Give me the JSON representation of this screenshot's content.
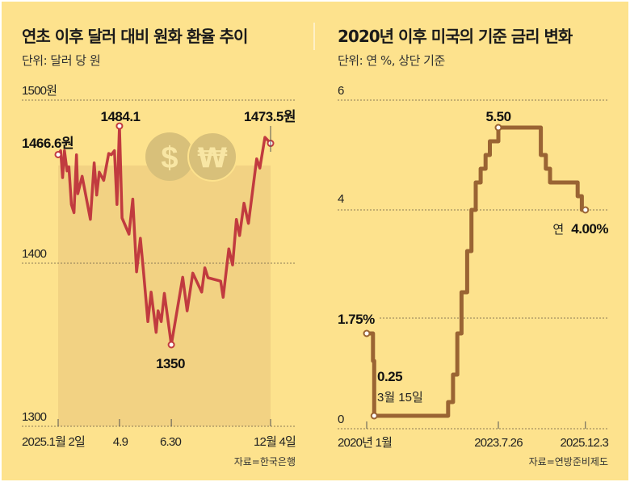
{
  "colors": {
    "background": "#fde28d",
    "shade": "#f2d283",
    "krw_line": "#c13b3f",
    "fed_line": "#9a6433",
    "coin": "#d8c07a",
    "coin_glyph": "#f8e6a4"
  },
  "chart_data": [
    {
      "type": "line",
      "title": "연초 이후 달러 대비 원화 환율 추이",
      "subtitle": "단위: 달러 당 원",
      "ylim": [
        1300,
        1500
      ],
      "y_ticks": [
        "1500원",
        "1400",
        "1300"
      ],
      "x_ticks": [
        "2025.1월 2일",
        "4.9",
        "6.30",
        "12월 4일"
      ],
      "x_tick_dates": [
        "2025-01-02",
        "2025-04-09",
        "2025-06-30",
        "2025-12-04"
      ],
      "grid": "horizontal dashed",
      "source": "자료=한국은행",
      "icons": [
        "dollar-coin-icon",
        "won-coin-icon"
      ],
      "annotations": {
        "start": "1466.6원",
        "peak": "1484.1",
        "low": "1350",
        "end": "1473.5원"
      },
      "series": [
        {
          "x": [
            "2025-01-02",
            "2025-01-06",
            "2025-01-09",
            "2025-01-12",
            "2025-01-16",
            "2025-01-19",
            "2025-01-23",
            "2025-01-27",
            "2025-01-31",
            "2025-02-02",
            "2025-02-09",
            "2025-02-22",
            "2025-02-28",
            "2025-03-04",
            "2025-03-08",
            "2025-03-15",
            "2025-03-23",
            "2025-03-27",
            "2025-04-01",
            "2025-04-05",
            "2025-04-09",
            "2025-04-13",
            "2025-04-24",
            "2025-04-30",
            "2025-05-06",
            "2025-05-12",
            "2025-05-17",
            "2025-05-24",
            "2025-05-29",
            "2025-06-06",
            "2025-06-09",
            "2025-06-14",
            "2025-06-19",
            "2025-06-30",
            "2025-07-18",
            "2025-07-25",
            "2025-08-03",
            "2025-08-17",
            "2025-08-22",
            "2025-08-27",
            "2025-09-16",
            "2025-09-20",
            "2025-09-29",
            "2025-10-05",
            "2025-10-11",
            "2025-10-16",
            "2025-10-23",
            "2025-10-30",
            "2025-11-12",
            "2025-11-17",
            "2025-11-25",
            "2025-12-04"
          ],
          "y": [
            1466.6,
            1469,
            1452.5,
            1469,
            1456.6,
            1459.1,
            1436,
            1431,
            1466.5,
            1442.6,
            1453.3,
            1426.9,
            1461.5,
            1441.8,
            1455.8,
            1450.8,
            1467.3,
            1466.5,
            1469,
            1436,
            1484.1,
            1427.7,
            1417.8,
            1439.3,
            1394.7,
            1415.3,
            1394.7,
            1364.2,
            1382.3,
            1357.6,
            1370.8,
            1364.2,
            1381.5,
            1350,
            1391.4,
            1370.8,
            1393.9,
            1382.3,
            1397.2,
            1391.1,
            1389,
            1379.1,
            1408.8,
            1398.9,
            1426.9,
            1417,
            1436.8,
            1424.4,
            1464,
            1458.3,
            1477.2,
            1473.5
          ]
        }
      ]
    },
    {
      "type": "line",
      "title": "2020년 이후 미국의 기준 금리 변화",
      "subtitle": "단위: 연 %, 상단 기준",
      "ylim": [
        0,
        6
      ],
      "y_ticks": [
        "6",
        "4",
        "0"
      ],
      "x_ticks": [
        "2020년 1월",
        "2023.7.26",
        "2025.12.3"
      ],
      "x_tick_dates": [
        "2020-01-01",
        "2023-07-26",
        "2025-12-03"
      ],
      "step": true,
      "grid": "horizontal dashed",
      "source": "자료=연방준비제도",
      "annotations": {
        "start": "1.75%",
        "low": "0.25",
        "low_date": "3월 15일",
        "peak": "5.50",
        "end_prefix": "연",
        "end": "4.00%"
      },
      "series": [
        {
          "x": [
            "2020-01-01",
            "2020-03-03",
            "2020-03-15",
            "2022-03-16",
            "2022-05-04",
            "2022-06-15",
            "2022-07-27",
            "2022-09-21",
            "2022-11-02",
            "2022-12-14",
            "2023-02-01",
            "2023-03-22",
            "2023-05-03",
            "2023-07-26",
            "2024-09-18",
            "2024-11-07",
            "2024-12-18",
            "2025-09-17",
            "2025-10-29",
            "2025-12-03"
          ],
          "y": [
            1.75,
            1.25,
            0.25,
            0.5,
            1.0,
            1.75,
            2.5,
            3.25,
            4.0,
            4.5,
            4.75,
            5.0,
            5.25,
            5.5,
            5.0,
            4.75,
            4.5,
            4.25,
            4.0,
            4.0
          ]
        }
      ]
    }
  ]
}
